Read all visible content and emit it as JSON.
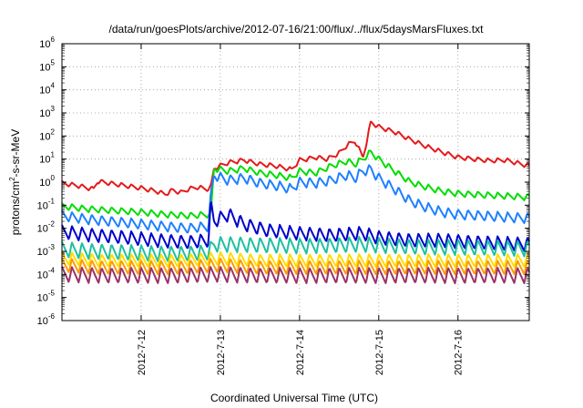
{
  "chart_data": {
    "type": "line",
    "title": "/data/run/goesPlots/archive/2012-07-16/21:00/flux/../flux/5daysMarsFluxes.txt",
    "xlabel": "Coordinated Universal Time (UTC)",
    "ylabel_parts": [
      "protons/cm",
      "2",
      "-s-sr-MeV"
    ],
    "yscale": "log",
    "ylim": [
      1e-06,
      1000000.0
    ],
    "xlim": [
      11.0,
      16.9
    ],
    "x_unit": "days of July 2012",
    "grid": true,
    "xticks": [
      {
        "x": 12,
        "label": "2012-7-12"
      },
      {
        "x": 13,
        "label": "2012-7-13"
      },
      {
        "x": 14,
        "label": "2012-7-14"
      },
      {
        "x": 15,
        "label": "2012-7-15"
      },
      {
        "x": 16,
        "label": "2012-7-16"
      }
    ],
    "yticks": [
      {
        "exp": -6,
        "base": "10",
        "sup": "-6"
      },
      {
        "exp": -5,
        "base": "10",
        "sup": "-5"
      },
      {
        "exp": -4,
        "base": "10",
        "sup": "-4"
      },
      {
        "exp": -3,
        "base": "10",
        "sup": "-3"
      },
      {
        "exp": -2,
        "base": "10",
        "sup": "-2"
      },
      {
        "exp": -1,
        "base": "10",
        "sup": "-1"
      },
      {
        "exp": 0,
        "base": "10",
        "sup": "0"
      },
      {
        "exp": 1,
        "base": "10",
        "sup": "1"
      },
      {
        "exp": 2,
        "base": "10",
        "sup": "2"
      },
      {
        "exp": 3,
        "base": "10",
        "sup": "3"
      },
      {
        "exp": 4,
        "base": "10",
        "sup": "4"
      },
      {
        "exp": 5,
        "base": "10",
        "sup": "5"
      },
      {
        "exp": 6,
        "base": "10",
        "sup": "6"
      }
    ],
    "series": [
      {
        "color": "#e41a1c",
        "x": [
          11.0,
          11.2,
          11.4,
          11.45,
          11.6,
          11.8,
          12.0,
          12.2,
          12.3,
          12.4,
          12.5,
          12.6,
          12.7,
          12.85,
          12.88,
          12.92,
          13.1,
          13.3,
          13.5,
          13.7,
          13.9,
          14.0,
          14.1,
          14.2,
          14.35,
          14.5,
          14.6,
          14.7,
          14.8,
          14.85,
          14.9,
          15.0,
          15.2,
          15.4,
          15.6,
          15.8,
          16.0,
          16.2,
          16.4,
          16.6,
          16.9
        ],
        "y": [
          0.9,
          0.7,
          0.5,
          1.1,
          0.9,
          0.7,
          0.55,
          0.4,
          0.3,
          0.45,
          0.35,
          0.5,
          0.6,
          0.5,
          0.6,
          4.0,
          7.0,
          9.0,
          6.0,
          5.0,
          3.5,
          9.0,
          10.0,
          12.0,
          10.0,
          18.0,
          40.0,
          60.0,
          12.0,
          60.0,
          400.0,
          250.0,
          150.0,
          70.0,
          35.0,
          20.0,
          12.0,
          10.0,
          8.5,
          9.0,
          5.0
        ]
      },
      {
        "color": "#00dd00",
        "x": [
          11.0,
          11.3,
          11.6,
          12.0,
          12.3,
          12.6,
          12.88,
          12.92,
          13.1,
          13.3,
          13.5,
          13.7,
          13.9,
          14.0,
          14.2,
          14.4,
          14.6,
          14.7,
          14.8,
          14.9,
          15.0,
          15.2,
          15.4,
          15.6,
          15.8,
          16.0,
          16.3,
          16.6,
          16.9
        ],
        "y": [
          0.09,
          0.07,
          0.06,
          0.05,
          0.04,
          0.035,
          0.04,
          4.0,
          3.0,
          4.0,
          2.5,
          2.0,
          1.5,
          3.0,
          2.5,
          5.0,
          8.0,
          6.0,
          10.0,
          20.0,
          10.0,
          3.0,
          1.0,
          0.6,
          0.4,
          0.32,
          0.28,
          0.25,
          0.22
        ]
      },
      {
        "color": "#1e80ff",
        "x": [
          11.0,
          11.3,
          11.6,
          12.0,
          12.3,
          12.6,
          12.85,
          12.88,
          12.92,
          13.1,
          13.3,
          13.5,
          13.7,
          13.9,
          14.0,
          14.2,
          14.4,
          14.6,
          14.7,
          14.8,
          14.9,
          15.0,
          15.2,
          15.4,
          15.6,
          15.8,
          16.0,
          16.3,
          16.6,
          16.9
        ],
        "y": [
          0.035,
          0.025,
          0.02,
          0.015,
          0.012,
          0.01,
          0.012,
          0.25,
          2.0,
          1.2,
          1.5,
          0.9,
          0.7,
          0.5,
          1.0,
          0.9,
          1.2,
          2.0,
          1.5,
          3.0,
          3.5,
          1.5,
          0.5,
          0.15,
          0.08,
          0.05,
          0.04,
          0.035,
          0.03,
          0.027
        ]
      },
      {
        "color": "#0000cc",
        "x": [
          11.0,
          11.4,
          11.8,
          12.2,
          12.6,
          12.85,
          12.88,
          12.92,
          13.1,
          13.3,
          13.6,
          14.0,
          14.4,
          14.8,
          15.0,
          15.4,
          15.8,
          16.2,
          16.6,
          16.9
        ],
        "y": [
          0.007,
          0.005,
          0.004,
          0.003,
          0.0025,
          0.003,
          0.1,
          0.02,
          0.04,
          0.015,
          0.008,
          0.006,
          0.005,
          0.006,
          0.004,
          0.003,
          0.003,
          0.0025,
          0.0022,
          0.002
        ]
      },
      {
        "color": "#1fbf9f",
        "x": [
          11.0,
          11.4,
          11.8,
          12.2,
          12.6,
          12.85,
          12.92,
          13.2,
          13.6,
          14.0,
          14.4,
          14.8,
          15.2,
          15.6,
          16.0,
          16.4,
          16.9
        ],
        "y": [
          0.0012,
          0.001,
          0.0009,
          0.0008,
          0.0008,
          0.0009,
          0.002,
          0.002,
          0.0018,
          0.0017,
          0.0018,
          0.002,
          0.0017,
          0.0015,
          0.0015,
          0.0014,
          0.0013
        ]
      },
      {
        "color": "#ffdd00",
        "x": [
          11.0,
          11.5,
          12.0,
          12.5,
          13.0,
          13.5,
          14.0,
          14.5,
          15.0,
          15.5,
          16.0,
          16.5,
          16.9
        ],
        "y": [
          0.0005,
          0.0004,
          0.0004,
          0.0004,
          0.0005,
          0.0004,
          0.0004,
          0.0004,
          0.0004,
          0.0004,
          0.0004,
          0.0004,
          0.0004
        ]
      },
      {
        "color": "#ff9900",
        "x": [
          11.0,
          11.5,
          12.0,
          12.5,
          13.0,
          13.5,
          14.0,
          14.5,
          15.0,
          15.5,
          16.0,
          16.5,
          16.9
        ],
        "y": [
          0.00025,
          0.0002,
          0.0002,
          0.0002,
          0.00025,
          0.0002,
          0.0002,
          0.0002,
          0.0002,
          0.0002,
          0.0002,
          0.0002,
          0.0002
        ]
      },
      {
        "color": "#993366",
        "x": [
          11.0,
          11.5,
          12.0,
          12.5,
          13.0,
          13.5,
          14.0,
          14.5,
          15.0,
          15.5,
          16.0,
          16.5,
          16.9
        ],
        "y": [
          0.0001,
          9e-05,
          9e-05,
          9e-05,
          0.0001,
          9e-05,
          9e-05,
          9e-05,
          9e-05,
          9e-05,
          9e-05,
          9e-05,
          9e-05
        ]
      }
    ]
  }
}
